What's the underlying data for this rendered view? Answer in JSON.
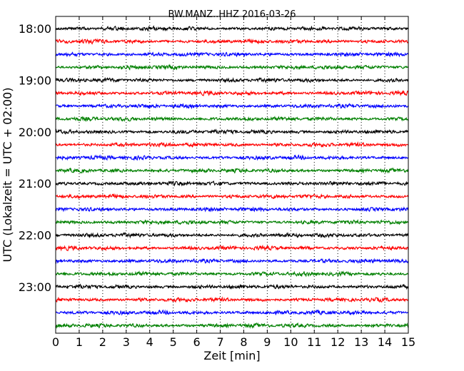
{
  "chart_data": {
    "type": "line",
    "title": "BW.MANZ..HHZ 2016-03-26",
    "xlabel": "Zeit  [min]",
    "ylabel": "UTC (Lokalzeit = UTC + 02:00)",
    "xlim": [
      0,
      15
    ],
    "x_ticks": [
      "0",
      "1",
      "2",
      "3",
      "4",
      "5",
      "6",
      "7",
      "8",
      "9",
      "10",
      "11",
      "12",
      "13",
      "14",
      "15"
    ],
    "y_tick_labels": [
      "18:00",
      "19:00",
      "20:00",
      "21:00",
      "22:00",
      "23:00"
    ],
    "grid": "vertical dotted",
    "trace_colors": [
      "#000000",
      "#ff0000",
      "#0000ff",
      "#008000"
    ],
    "trace_interval_minutes": 15,
    "trace_start_utc": "18:00",
    "trace_count": 24
  }
}
